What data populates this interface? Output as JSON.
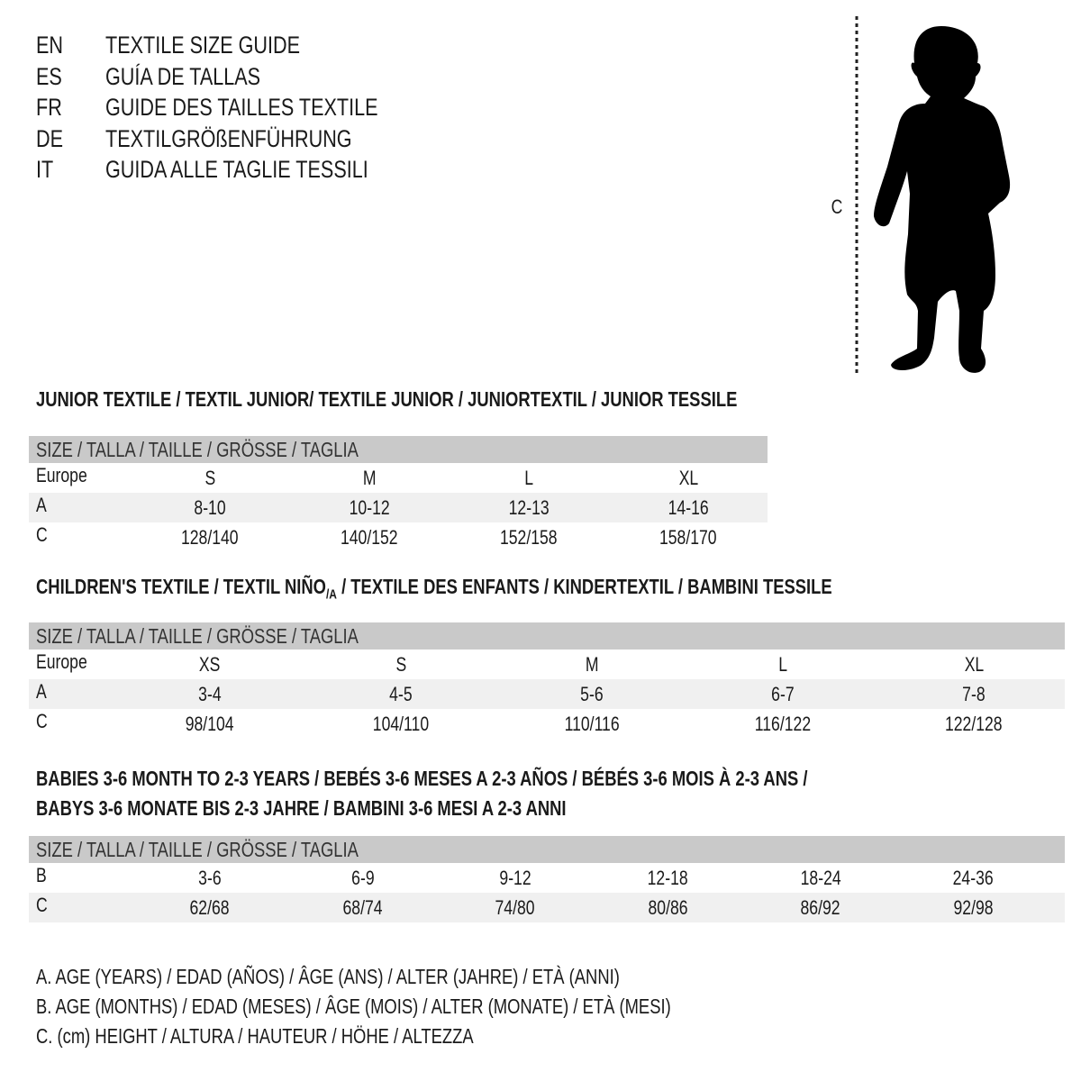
{
  "header": {
    "languages": [
      {
        "code": "EN",
        "title": "TEXTILE SIZE GUIDE"
      },
      {
        "code": "ES",
        "title": "GUÍA DE TALLAS"
      },
      {
        "code": "FR",
        "title": "GUIDE DES TAILLES TEXTILE"
      },
      {
        "code": "DE",
        "title": "TEXTILGRÖßENFÜHRUNG"
      },
      {
        "code": "IT",
        "title": "GUIDA ALLE TAGLIE TESSILI"
      }
    ]
  },
  "figure": {
    "measure_label": "C",
    "icon": "child-silhouette"
  },
  "colors": {
    "header_bg": "#c9c9c9",
    "stripe_bg": "#f0f0f0",
    "text": "#1a1a1a"
  },
  "junior": {
    "title": "JUNIOR TEXTILE / TEXTIL JUNIOR/ TEXTILE JUNIOR / JUNIORTEXTIL / JUNIOR TESSILE",
    "header": "SIZE / TALLA / TAILLE / GRÖSSE / TAGLIA",
    "rows": [
      {
        "label": "Europe",
        "values": [
          "S",
          "M",
          "L",
          "XL"
        ]
      },
      {
        "label": "A",
        "values": [
          "8-10",
          "10-12",
          "12-13",
          "14-16"
        ]
      },
      {
        "label": "C",
        "values": [
          "128/140",
          "140/152",
          "152/158",
          "158/170"
        ]
      }
    ]
  },
  "children": {
    "title": "CHILDREN'S TEXTILE / TEXTIL NIÑO",
    "title_sub": "/A",
    "title_rest": " / TEXTILE DES ENFANTS / KINDERTEXTIL / BAMBINI TESSILE",
    "header": "SIZE / TALLA / TAILLE / GRÖSSE / TAGLIA",
    "rows": [
      {
        "label": "Europe",
        "values": [
          "XS",
          "S",
          "M",
          "L",
          "XL"
        ]
      },
      {
        "label": "A",
        "values": [
          "3-4",
          "4-5",
          "5-6",
          "6-7",
          "7-8"
        ]
      },
      {
        "label": "C",
        "values": [
          "98/104",
          "104/110",
          "110/116",
          "116/122",
          "122/128"
        ]
      }
    ]
  },
  "babies": {
    "title_line1": "BABIES 3-6 MONTH TO 2-3 YEARS / BEBÉS 3-6 MESES A 2-3 AÑOS / BÉBÉS 3-6 MOIS À 2-3 ANS /",
    "title_line2": "BABYS 3-6 MONATE BIS 2-3 JAHRE / BAMBINI 3-6 MESI A 2-3 ANNI",
    "header": "SIZE / TALLA / TAILLE / GRÖSSE / TAGLIA",
    "rows": [
      {
        "label": "B",
        "values": [
          "3-6",
          "6-9",
          "9-12",
          "12-18",
          "18-24",
          "24-36"
        ]
      },
      {
        "label": "C",
        "values": [
          "62/68",
          "68/74",
          "74/80",
          "80/86",
          "86/92",
          "92/98"
        ]
      }
    ]
  },
  "legend": [
    "A. AGE (YEARS) / EDAD (AÑOS) / ÂGE (ANS) / ALTER (JAHRE) / ETÀ (ANNI)",
    "B. AGE (MONTHS) / EDAD (MESES) / ÂGE (MOIS) / ALTER (MONATE) / ETÀ (MESI)",
    "C. (cm) HEIGHT / ALTURA / HAUTEUR / HÖHE / ALTEZZA"
  ]
}
